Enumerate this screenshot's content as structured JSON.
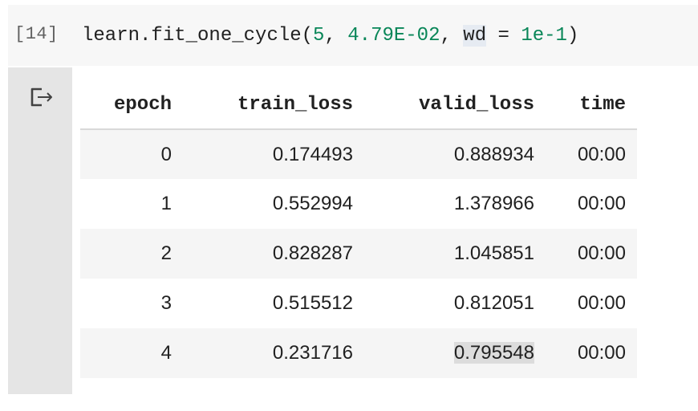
{
  "cell": {
    "prompt": "[14]",
    "code": {
      "func": "learn.fit_one_cycle(",
      "arg1": "5",
      "sep1": ", ",
      "arg2": "4.79E-02",
      "sep2": ", ",
      "kw": "wd",
      "eq": " = ",
      "kwval": "1e-1",
      "close": ")"
    }
  },
  "output": {
    "icon": "output-redirect-icon",
    "table": {
      "headers": [
        "epoch",
        "train_loss",
        "valid_loss",
        "time"
      ],
      "rows": [
        [
          "0",
          "0.174493",
          "0.888934",
          "00:00"
        ],
        [
          "1",
          "0.552994",
          "1.378966",
          "00:00"
        ],
        [
          "2",
          "0.828287",
          "1.045851",
          "00:00"
        ],
        [
          "3",
          "0.515512",
          "0.812051",
          "00:00"
        ],
        [
          "4",
          "0.231716",
          "0.795548",
          "00:00"
        ]
      ]
    }
  },
  "colors": {
    "number": "#098658",
    "code_background": "#f7f7f7",
    "gutter": "#e5e5e5"
  }
}
